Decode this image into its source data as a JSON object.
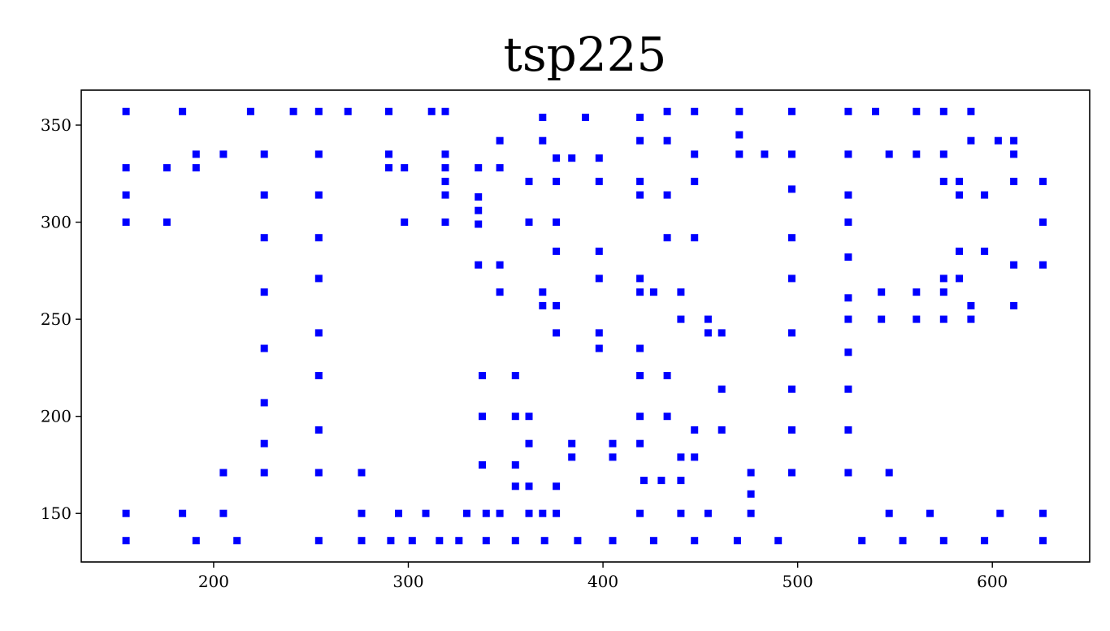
{
  "chart_data": {
    "type": "scatter",
    "title": "tsp225",
    "xlabel": "",
    "ylabel": "",
    "xlim": [
      132,
      650
    ],
    "ylim": [
      125,
      368
    ],
    "xticks": [
      200,
      300,
      400,
      500,
      600
    ],
    "yticks": [
      150,
      200,
      250,
      300,
      350
    ],
    "grid": false,
    "marker": "square",
    "color": "#0000ff",
    "points": [
      [
        155,
        357
      ],
      [
        184,
        357
      ],
      [
        219,
        357
      ],
      [
        241,
        357
      ],
      [
        254,
        357
      ],
      [
        269,
        357
      ],
      [
        290,
        357
      ],
      [
        312,
        357
      ],
      [
        319,
        357
      ],
      [
        369,
        354
      ],
      [
        391,
        354
      ],
      [
        419,
        354
      ],
      [
        433,
        357
      ],
      [
        447,
        357
      ],
      [
        470,
        357
      ],
      [
        497,
        357
      ],
      [
        526,
        357
      ],
      [
        540,
        357
      ],
      [
        561,
        357
      ],
      [
        575,
        357
      ],
      [
        589,
        357
      ],
      [
        347,
        342
      ],
      [
        369,
        342
      ],
      [
        419,
        342
      ],
      [
        433,
        342
      ],
      [
        470,
        345
      ],
      [
        589,
        342
      ],
      [
        603,
        342
      ],
      [
        611,
        342
      ],
      [
        191,
        335
      ],
      [
        205,
        335
      ],
      [
        226,
        335
      ],
      [
        254,
        335
      ],
      [
        290,
        335
      ],
      [
        319,
        335
      ],
      [
        376,
        333
      ],
      [
        384,
        333
      ],
      [
        398,
        333
      ],
      [
        447,
        335
      ],
      [
        470,
        335
      ],
      [
        483,
        335
      ],
      [
        497,
        335
      ],
      [
        526,
        335
      ],
      [
        547,
        335
      ],
      [
        561,
        335
      ],
      [
        575,
        335
      ],
      [
        611,
        335
      ],
      [
        155,
        328
      ],
      [
        176,
        328
      ],
      [
        191,
        328
      ],
      [
        290,
        328
      ],
      [
        298,
        328
      ],
      [
        319,
        328
      ],
      [
        336,
        328
      ],
      [
        347,
        328
      ],
      [
        319,
        321
      ],
      [
        362,
        321
      ],
      [
        376,
        321
      ],
      [
        398,
        321
      ],
      [
        419,
        321
      ],
      [
        447,
        321
      ],
      [
        575,
        321
      ],
      [
        583,
        321
      ],
      [
        611,
        321
      ],
      [
        626,
        321
      ],
      [
        155,
        314
      ],
      [
        226,
        314
      ],
      [
        254,
        314
      ],
      [
        319,
        314
      ],
      [
        336,
        313
      ],
      [
        419,
        314
      ],
      [
        433,
        314
      ],
      [
        497,
        317
      ],
      [
        526,
        314
      ],
      [
        583,
        314
      ],
      [
        596,
        314
      ],
      [
        336,
        306
      ],
      [
        155,
        300
      ],
      [
        176,
        300
      ],
      [
        298,
        300
      ],
      [
        319,
        300
      ],
      [
        336,
        299
      ],
      [
        362,
        300
      ],
      [
        376,
        300
      ],
      [
        526,
        300
      ],
      [
        626,
        300
      ],
      [
        226,
        292
      ],
      [
        254,
        292
      ],
      [
        433,
        292
      ],
      [
        447,
        292
      ],
      [
        497,
        292
      ],
      [
        376,
        285
      ],
      [
        398,
        285
      ],
      [
        526,
        282
      ],
      [
        583,
        285
      ],
      [
        596,
        285
      ],
      [
        336,
        278
      ],
      [
        347,
        278
      ],
      [
        611,
        278
      ],
      [
        626,
        278
      ],
      [
        254,
        271
      ],
      [
        398,
        271
      ],
      [
        419,
        271
      ],
      [
        497,
        271
      ],
      [
        575,
        271
      ],
      [
        583,
        271
      ],
      [
        226,
        264
      ],
      [
        347,
        264
      ],
      [
        369,
        264
      ],
      [
        419,
        264
      ],
      [
        426,
        264
      ],
      [
        440,
        264
      ],
      [
        526,
        261
      ],
      [
        543,
        264
      ],
      [
        561,
        264
      ],
      [
        575,
        264
      ],
      [
        369,
        257
      ],
      [
        376,
        257
      ],
      [
        589,
        257
      ],
      [
        611,
        257
      ],
      [
        440,
        250
      ],
      [
        454,
        250
      ],
      [
        526,
        250
      ],
      [
        543,
        250
      ],
      [
        561,
        250
      ],
      [
        575,
        250
      ],
      [
        589,
        250
      ],
      [
        254,
        243
      ],
      [
        376,
        243
      ],
      [
        398,
        243
      ],
      [
        454,
        243
      ],
      [
        461,
        243
      ],
      [
        497,
        243
      ],
      [
        226,
        235
      ],
      [
        398,
        235
      ],
      [
        419,
        235
      ],
      [
        526,
        233
      ],
      [
        254,
        221
      ],
      [
        338,
        221
      ],
      [
        355,
        221
      ],
      [
        419,
        221
      ],
      [
        433,
        221
      ],
      [
        461,
        214
      ],
      [
        497,
        214
      ],
      [
        526,
        214
      ],
      [
        226,
        207
      ],
      [
        338,
        200
      ],
      [
        355,
        200
      ],
      [
        362,
        200
      ],
      [
        419,
        200
      ],
      [
        433,
        200
      ],
      [
        254,
        193
      ],
      [
        447,
        193
      ],
      [
        461,
        193
      ],
      [
        497,
        193
      ],
      [
        526,
        193
      ],
      [
        226,
        186
      ],
      [
        362,
        186
      ],
      [
        384,
        186
      ],
      [
        405,
        186
      ],
      [
        419,
        186
      ],
      [
        384,
        179
      ],
      [
        405,
        179
      ],
      [
        440,
        179
      ],
      [
        447,
        179
      ],
      [
        338,
        175
      ],
      [
        355,
        175
      ],
      [
        205,
        171
      ],
      [
        226,
        171
      ],
      [
        254,
        171
      ],
      [
        276,
        171
      ],
      [
        476,
        171
      ],
      [
        497,
        171
      ],
      [
        526,
        171
      ],
      [
        547,
        171
      ],
      [
        421,
        167
      ],
      [
        430,
        167
      ],
      [
        440,
        167
      ],
      [
        355,
        164
      ],
      [
        362,
        164
      ],
      [
        376,
        164
      ],
      [
        476,
        160
      ],
      [
        155,
        150
      ],
      [
        184,
        150
      ],
      [
        205,
        150
      ],
      [
        276,
        150
      ],
      [
        295,
        150
      ],
      [
        309,
        150
      ],
      [
        330,
        150
      ],
      [
        340,
        150
      ],
      [
        347,
        150
      ],
      [
        362,
        150
      ],
      [
        369,
        150
      ],
      [
        376,
        150
      ],
      [
        419,
        150
      ],
      [
        440,
        150
      ],
      [
        454,
        150
      ],
      [
        476,
        150
      ],
      [
        547,
        150
      ],
      [
        568,
        150
      ],
      [
        604,
        150
      ],
      [
        626,
        150
      ],
      [
        155,
        136
      ],
      [
        191,
        136
      ],
      [
        212,
        136
      ],
      [
        254,
        136
      ],
      [
        276,
        136
      ],
      [
        291,
        136
      ],
      [
        302,
        136
      ],
      [
        316,
        136
      ],
      [
        326,
        136
      ],
      [
        340,
        136
      ],
      [
        355,
        136
      ],
      [
        370,
        136
      ],
      [
        387,
        136
      ],
      [
        405,
        136
      ],
      [
        426,
        136
      ],
      [
        447,
        136
      ],
      [
        469,
        136
      ],
      [
        490,
        136
      ],
      [
        533,
        136
      ],
      [
        554,
        136
      ],
      [
        575,
        136
      ],
      [
        596,
        136
      ],
      [
        626,
        136
      ]
    ]
  }
}
